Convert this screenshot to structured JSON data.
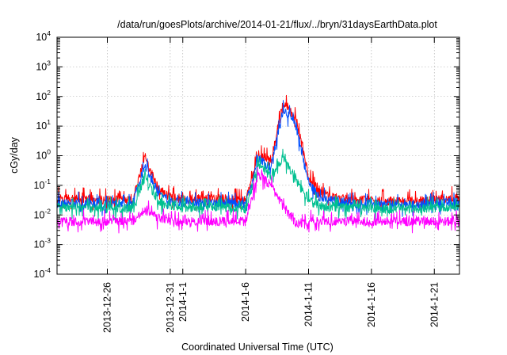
{
  "chart_data": {
    "type": "line",
    "title": "/data/run/goesPlots/archive/2014-01-21/flux/../bryn/31daysEarthData.plot",
    "xlabel": "Coordinated Universal Time (UTC)",
    "ylabel": "cGy/day",
    "yscale": "log",
    "ylim": [
      0.0001,
      10000
    ],
    "yticks": [
      {
        "base": "10",
        "exp": "-4"
      },
      {
        "base": "10",
        "exp": "-3"
      },
      {
        "base": "10",
        "exp": "-2"
      },
      {
        "base": "10",
        "exp": "-1"
      },
      {
        "base": "10",
        "exp": "0"
      },
      {
        "base": "10",
        "exp": "1"
      },
      {
        "base": "10",
        "exp": "2"
      },
      {
        "base": "10",
        "exp": "3"
      },
      {
        "base": "10",
        "exp": "4"
      }
    ],
    "xlim": [
      "2013-12-22",
      "2014-01-23"
    ],
    "xticks": [
      "2013-12-26",
      "2013-12-31",
      "2014-1-1",
      "2014-1-6",
      "2014-1-11",
      "2014-1-16",
      "2014-1-21"
    ],
    "xtick_dates": [
      "2013-12-26",
      "2013-12-31",
      "2014-01-01",
      "2014-01-06",
      "2014-01-11",
      "2014-01-16",
      "2014-01-21"
    ],
    "grid": true,
    "series": [
      {
        "color": "#ff0000",
        "x": [
          "2013-12-22",
          "2013-12-28",
          "2013-12-29",
          "2013-12-30",
          "2013-12-31",
          "2014-01-01",
          "2014-01-04",
          "2014-01-06",
          "2014-01-07",
          "2014-01-08",
          "2014-01-09",
          "2014-01-10",
          "2014-01-11",
          "2014-01-12",
          "2014-01-13",
          "2014-01-14",
          "2014-01-17",
          "2014-01-20",
          "2014-01-23"
        ],
        "values": [
          0.035,
          0.03,
          0.9,
          0.08,
          0.04,
          0.035,
          0.035,
          0.03,
          1.2,
          0.6,
          70,
          18,
          0.2,
          0.05,
          0.04,
          0.035,
          0.03,
          0.03,
          0.04
        ]
      },
      {
        "color": "#0050ff",
        "x": [
          "2013-12-22",
          "2013-12-28",
          "2013-12-29",
          "2013-12-30",
          "2013-12-31",
          "2014-01-01",
          "2014-01-04",
          "2014-01-06",
          "2014-01-07",
          "2014-01-08",
          "2014-01-09",
          "2014-01-10",
          "2014-01-11",
          "2014-01-12",
          "2014-01-13",
          "2014-01-14",
          "2014-01-17",
          "2014-01-20",
          "2014-01-23"
        ],
        "values": [
          0.025,
          0.022,
          0.5,
          0.06,
          0.03,
          0.025,
          0.025,
          0.022,
          0.9,
          0.4,
          40,
          10,
          0.12,
          0.035,
          0.03,
          0.025,
          0.022,
          0.022,
          0.028
        ]
      },
      {
        "color": "#00c090",
        "x": [
          "2013-12-22",
          "2013-12-28",
          "2013-12-29",
          "2013-12-30",
          "2013-12-31",
          "2014-01-01",
          "2014-01-04",
          "2014-01-06",
          "2014-01-07",
          "2014-01-08",
          "2014-01-09",
          "2014-01-10",
          "2014-01-11",
          "2014-01-12",
          "2014-01-14",
          "2014-01-17",
          "2014-01-20",
          "2014-01-23"
        ],
        "values": [
          0.018,
          0.016,
          0.2,
          0.03,
          0.02,
          0.018,
          0.018,
          0.016,
          0.5,
          0.2,
          0.9,
          0.15,
          0.03,
          0.02,
          0.018,
          0.016,
          0.016,
          0.02
        ]
      },
      {
        "color": "#ff00ff",
        "x": [
          "2013-12-22",
          "2013-12-28",
          "2013-12-29",
          "2013-12-30",
          "2013-12-31",
          "2014-01-01",
          "2014-01-04",
          "2014-01-06",
          "2014-01-07",
          "2014-01-08",
          "2014-01-09",
          "2014-01-10",
          "2014-01-11",
          "2014-01-12",
          "2014-01-14",
          "2014-01-17",
          "2014-01-20",
          "2014-01-23"
        ],
        "values": [
          0.006,
          0.006,
          0.015,
          0.008,
          0.006,
          0.006,
          0.006,
          0.006,
          0.25,
          0.1,
          0.02,
          0.005,
          0.006,
          0.006,
          0.006,
          0.006,
          0.006,
          0.006
        ]
      }
    ]
  }
}
